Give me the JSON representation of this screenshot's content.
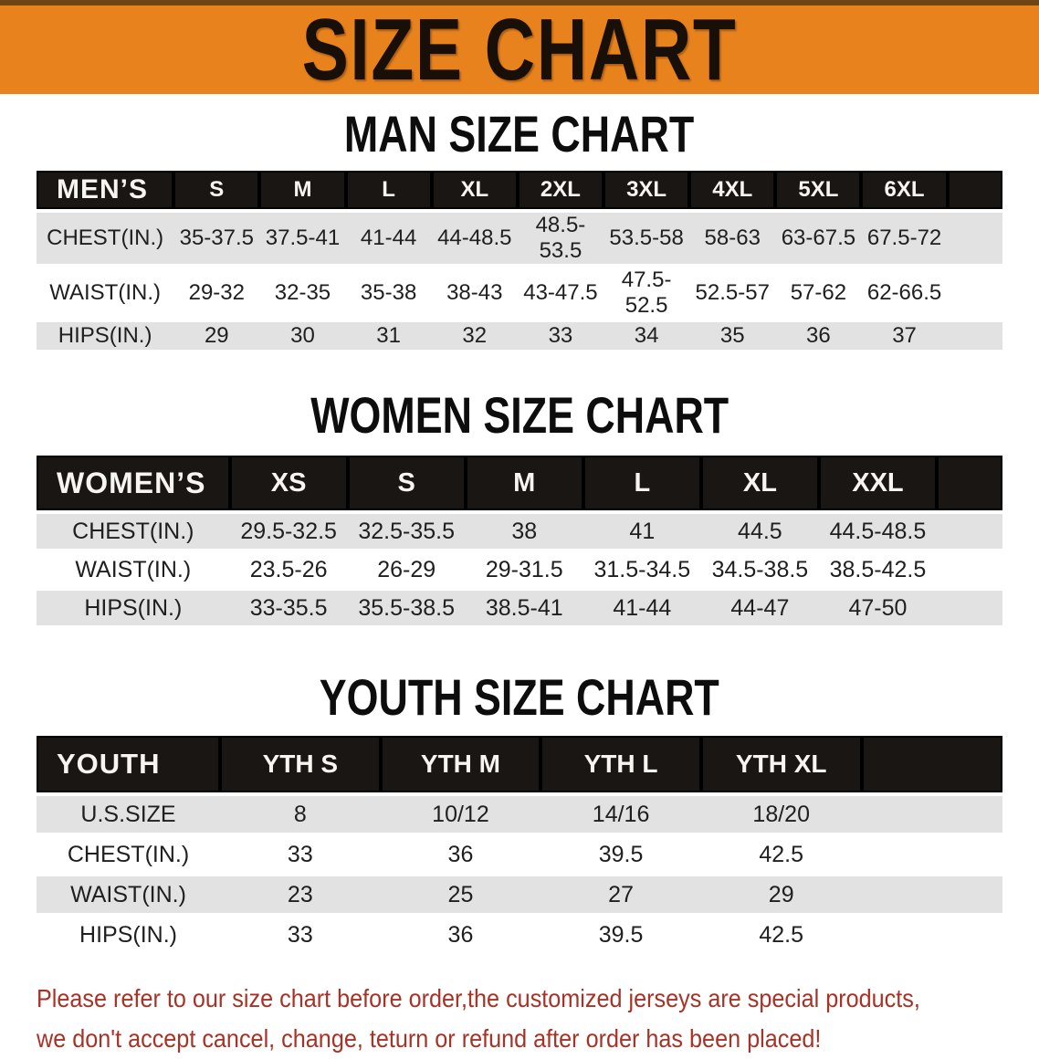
{
  "banner": {
    "title": "SIZE CHART",
    "bg_color": "#E8821C",
    "text_color": "#181008"
  },
  "sections": {
    "men": {
      "heading": "MAN SIZE CHART",
      "table": {
        "corner": "MEN’S",
        "columns": [
          "S",
          "M",
          "L",
          "XL",
          "2XL",
          "3XL",
          "4XL",
          "5XL",
          "6XL"
        ],
        "rows": [
          {
            "label": "CHEST(IN.)",
            "values": [
              "35-37.5",
              "37.5-41",
              "41-44",
              "44-48.5",
              "48.5-53.5",
              "53.5-58",
              "58-63",
              "63-67.5",
              "67.5-72"
            ]
          },
          {
            "label": "WAIST(IN.)",
            "values": [
              "29-32",
              "32-35",
              "35-38",
              "38-43",
              "43-47.5",
              "47.5-52.5",
              "52.5-57",
              "57-62",
              "62-66.5"
            ]
          },
          {
            "label": "HIPS(IN.)",
            "values": [
              "29",
              "30",
              "31",
              "32",
              "33",
              "34",
              "35",
              "36",
              "37"
            ]
          }
        ]
      }
    },
    "women": {
      "heading": "WOMEN SIZE CHART",
      "table": {
        "corner": "WOMEN’S",
        "columns": [
          "XS",
          "S",
          "M",
          "L",
          "XL",
          "XXL"
        ],
        "rows": [
          {
            "label": "CHEST(IN.)",
            "values": [
              "29.5-32.5",
              "32.5-35.5",
              "38",
              "41",
              "44.5",
              "44.5-48.5"
            ]
          },
          {
            "label": "WAIST(IN.)",
            "values": [
              "23.5-26",
              "26-29",
              "29-31.5",
              "31.5-34.5",
              "34.5-38.5",
              "38.5-42.5"
            ]
          },
          {
            "label": "HIPS(IN.)",
            "values": [
              "33-35.5",
              "35.5-38.5",
              "38.5-41",
              "41-44",
              "44-47",
              "47-50"
            ]
          }
        ]
      }
    },
    "youth": {
      "heading": "YOUTH SIZE CHART",
      "table": {
        "corner": "YOUTH",
        "columns": [
          "YTH S",
          "YTH M",
          "YTH L",
          "YTH XL"
        ],
        "rows": [
          {
            "label": "U.S.SIZE",
            "values": [
              "8",
              "10/12",
              "14/16",
              "18/20"
            ]
          },
          {
            "label": "CHEST(IN.)",
            "values": [
              "33",
              "36",
              "39.5",
              "42.5"
            ]
          },
          {
            "label": "WAIST(IN.)",
            "values": [
              "23",
              "25",
              "27",
              "29"
            ]
          },
          {
            "label": "HIPS(IN.)",
            "values": [
              "33",
              "36",
              "39.5",
              "42.5"
            ]
          }
        ]
      }
    }
  },
  "disclaimer": {
    "line1": "Please refer to our size chart before order,the customized jerseys are special products,",
    "line2": "we don't accept cancel, change, teturn or refund after order has been placed!",
    "text_color": "#A93226"
  },
  "table_style": {
    "header_bg": "#191613",
    "header_text": "#F7F5F0",
    "stripe_row_bg": "#E2E2E2"
  }
}
